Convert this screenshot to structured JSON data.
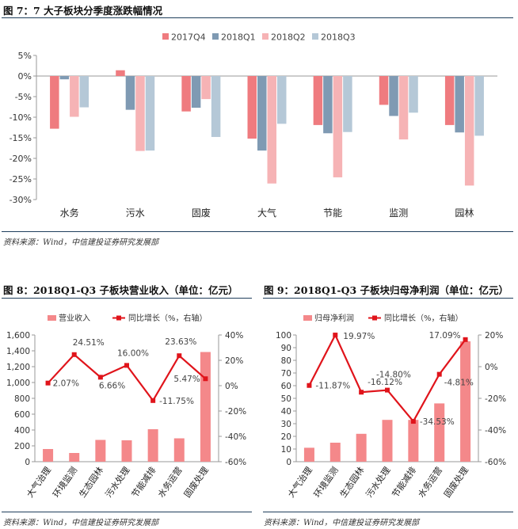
{
  "fig7": {
    "title": "图 7：7 大子板块分季度涨跌幅情况",
    "source": "资料来源：Wind，中信建投证券研究发展部"
  },
  "fig8": {
    "title": "图 8：2018Q1-Q3 子板块营业收入（单位：亿元）",
    "source": "资料来源：Wind，中信建投证券研究发展部"
  },
  "fig9": {
    "title": "图 9：2018Q1-Q3 子板块归母净利润（单位：亿元）",
    "source": "资料来源：Wind，中信建投证券研究发展部"
  },
  "chart_data": [
    {
      "type": "bar",
      "categories": [
        "水务",
        "污水",
        "固废",
        "大气",
        "节能",
        "监测",
        "园林"
      ],
      "series": [
        {
          "name": "2017Q4",
          "color": "#ef7b7f",
          "values": [
            -12.8,
            1.4,
            -8.6,
            -15.2,
            -11.9,
            -7.0,
            -11.9
          ]
        },
        {
          "name": "2018Q1",
          "color": "#7f9ab3",
          "values": [
            -0.8,
            -8.2,
            -7.7,
            -18.1,
            -13.9,
            -9.7,
            -13.7
          ]
        },
        {
          "name": "2018Q2",
          "color": "#f6b3b5",
          "values": [
            -9.9,
            -18.2,
            -5.6,
            -26.1,
            -24.6,
            -15.4,
            -26.6
          ]
        },
        {
          "name": "2018Q3",
          "color": "#b5c8d7",
          "values": [
            -7.6,
            -18.1,
            -14.8,
            -11.6,
            -13.6,
            -8.9,
            -14.5
          ]
        }
      ],
      "ylim": [
        -30,
        5
      ],
      "yticks": [
        "5%",
        "0%",
        "-5%",
        "-10%",
        "-15%",
        "-20%",
        "-25%",
        "-30%"
      ],
      "legend": "top"
    },
    {
      "type": "bar",
      "categories": [
        "大气治理",
        "环境监测",
        "生态园林",
        "污水处理",
        "节能减排",
        "水务运营",
        "固废处理"
      ],
      "series": [
        {
          "name": "营业收入",
          "color": "#f4888a",
          "values": [
            160,
            110,
            275,
            270,
            410,
            295,
            1385
          ]
        },
        {
          "name": "同比增长（%，右轴）",
          "color": "#e0141b",
          "type": "line",
          "axis": "right",
          "values": [
            2.07,
            24.51,
            6.66,
            16.0,
            -11.75,
            23.63,
            5.47
          ]
        }
      ],
      "data_labels": [
        "2.07%",
        "24.51%",
        "6.66%",
        "16.00%",
        "-11.75%",
        "23.63%",
        "5.47%"
      ],
      "ylim": [
        0,
        1600
      ],
      "yticks": [
        "1,600",
        "1,400",
        "1,200",
        "1,000",
        "800",
        "600",
        "400",
        "200",
        "0"
      ],
      "y2lim": [
        -60,
        40
      ],
      "y2ticks": [
        "40%",
        "20%",
        "0%",
        "-20%",
        "-40%",
        "-60%"
      ],
      "legend": "top"
    },
    {
      "type": "bar",
      "categories": [
        "大气治理",
        "环境监测",
        "生态园林",
        "污水处理",
        "节能减排",
        "水务运营",
        "固废处理"
      ],
      "series": [
        {
          "name": "归母净利润",
          "color": "#f4888a",
          "values": [
            11,
            15,
            22,
            33,
            33,
            46,
            95
          ]
        },
        {
          "name": "同比增长（%，右轴）",
          "color": "#e0141b",
          "type": "line",
          "axis": "right",
          "values": [
            -11.87,
            19.97,
            -16.12,
            -14.8,
            -34.53,
            -4.81,
            17.09
          ]
        }
      ],
      "data_labels": [
        "-11.87%",
        "19.97%",
        "-16.12%",
        "-14.80%",
        "-34.53%",
        "-4.81%",
        "17.09%"
      ],
      "ylim": [
        0,
        100
      ],
      "yticks": [
        "100",
        "90",
        "80",
        "70",
        "60",
        "50",
        "40",
        "30",
        "20",
        "10",
        "0"
      ],
      "y2lim": [
        -60,
        20
      ],
      "y2ticks": [
        "20%",
        "0%",
        "-20%",
        "-40%",
        "-60%"
      ],
      "legend": "top"
    }
  ]
}
